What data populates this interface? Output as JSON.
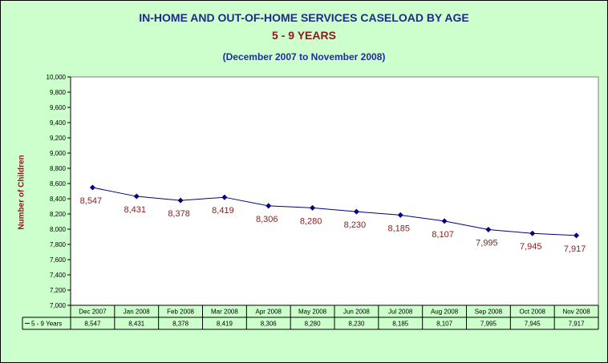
{
  "chart_data": {
    "type": "line",
    "title": "IN-HOME AND OUT-OF-HOME SERVICES CASELOAD BY AGE",
    "subtitle": "5 - 9 YEARS",
    "date_range": "(December 2007 to November 2008)",
    "ylabel": "Number of Children",
    "ylim": [
      7000,
      10000
    ],
    "yticks": [
      "7,000",
      "7,200",
      "7,400",
      "7,600",
      "7,800",
      "8,000",
      "8,200",
      "8,400",
      "8,600",
      "8,800",
      "9,000",
      "9,200",
      "9,400",
      "9,600",
      "9,800",
      "10,000"
    ],
    "categories": [
      "Dec 2007",
      "Jan 2008",
      "Feb 2008",
      "Mar 2008",
      "Apr 2008",
      "May 2008",
      "Jun 2008",
      "Jul 2008",
      "Aug 2008",
      "Sep 2008",
      "Oct 2008",
      "Nov 2008"
    ],
    "series": [
      {
        "name": "5 - 9 Years",
        "values": [
          8547,
          8431,
          8378,
          8419,
          8306,
          8280,
          8230,
          8185,
          8107,
          7995,
          7945,
          7917
        ],
        "labels": [
          "8,547",
          "8,431",
          "8,378",
          "8,419",
          "8,306",
          "8,280",
          "8,230",
          "8,185",
          "8,107",
          "7,995",
          "7,945",
          "7,917"
        ]
      }
    ],
    "grid": false,
    "data_table": true,
    "colors": {
      "background": "#ccffcc",
      "plot_area": "#ffffff",
      "line": "#000080",
      "data_label": "#8b1a1a",
      "title": "#1f2a8a",
      "subtitle": "#8b1a1a"
    }
  }
}
